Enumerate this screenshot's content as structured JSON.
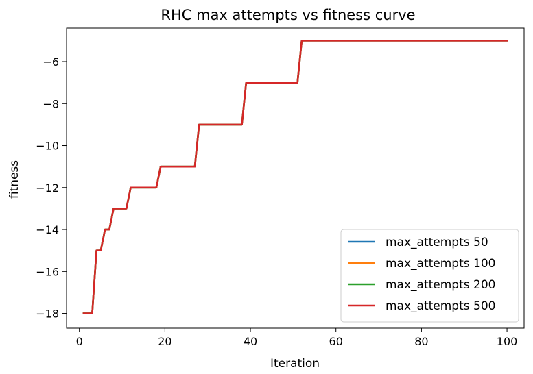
{
  "chart_data": {
    "type": "line",
    "title": "RHC max attempts vs fitness curve",
    "xlabel": "Iteration",
    "ylabel": "fitness",
    "xlim": [
      -3,
      104
    ],
    "ylim": [
      -18.7,
      -4.4
    ],
    "xticks": [
      0,
      20,
      40,
      60,
      80,
      100
    ],
    "yticks": [
      -18,
      -16,
      -14,
      -12,
      -10,
      -8,
      -6
    ],
    "grid": false,
    "legend_position": "lower-right",
    "series": [
      {
        "name": "max_attempts 50",
        "color": "#1f77b4",
        "x": [
          1,
          2,
          3,
          4,
          5,
          6,
          7,
          8,
          9,
          10,
          11,
          12,
          13,
          14,
          15,
          16,
          17,
          18,
          19,
          20,
          21,
          22,
          23,
          24,
          25,
          26,
          27,
          28,
          29,
          30,
          31,
          32,
          33,
          34,
          35,
          36,
          37,
          38,
          39,
          40,
          41,
          42,
          43,
          44,
          45,
          46,
          47,
          48,
          49,
          50,
          51,
          52,
          53,
          54,
          55,
          56,
          57,
          58,
          59,
          60,
          61,
          62,
          63,
          64,
          65,
          66,
          67,
          68,
          69,
          70,
          71,
          72,
          73,
          74,
          75,
          76,
          77,
          78,
          79,
          80,
          81,
          82,
          83,
          84,
          85,
          86,
          87,
          88,
          89,
          90,
          91,
          92,
          93,
          94,
          95,
          96,
          97,
          98,
          99,
          100
        ],
        "y": [
          -18,
          -18,
          -18,
          -15,
          -15,
          -14,
          -14,
          -13,
          -13,
          -13,
          -13,
          -12,
          -12,
          -12,
          -12,
          -12,
          -12,
          -12,
          -11,
          -11,
          -11,
          -11,
          -11,
          -11,
          -11,
          -11,
          -11,
          -9,
          -9,
          -9,
          -9,
          -9,
          -9,
          -9,
          -9,
          -9,
          -9,
          -9,
          -7,
          -7,
          -7,
          -7,
          -7,
          -7,
          -7,
          -7,
          -7,
          -7,
          -7,
          -7,
          -7,
          -5,
          -5,
          -5,
          -5,
          -5,
          -5,
          -5,
          -5,
          -5,
          -5,
          -5,
          -5,
          -5,
          -5,
          -5,
          -5,
          -5,
          -5,
          -5,
          -5,
          -5,
          -5,
          -5,
          -5,
          -5,
          -5,
          -5,
          -5,
          -5,
          -5,
          -5,
          -5,
          -5,
          -5,
          -5,
          -5,
          -5,
          -5,
          -5,
          -5,
          -5,
          -5,
          -5,
          -5,
          -5,
          -5,
          -5,
          -5,
          -5
        ]
      },
      {
        "name": "max_attempts 100",
        "color": "#ff7f0e",
        "x": [
          1,
          2,
          3,
          4,
          5,
          6,
          7,
          8,
          9,
          10,
          11,
          12,
          13,
          14,
          15,
          16,
          17,
          18,
          19,
          20,
          21,
          22,
          23,
          24,
          25,
          26,
          27,
          28,
          29,
          30,
          31,
          32,
          33,
          34,
          35,
          36,
          37,
          38,
          39,
          40,
          41,
          42,
          43,
          44,
          45,
          46,
          47,
          48,
          49,
          50,
          51,
          52,
          53,
          54,
          55,
          56,
          57,
          58,
          59,
          60,
          61,
          62,
          63,
          64,
          65,
          66,
          67,
          68,
          69,
          70,
          71,
          72,
          73,
          74,
          75,
          76,
          77,
          78,
          79,
          80,
          81,
          82,
          83,
          84,
          85,
          86,
          87,
          88,
          89,
          90,
          91,
          92,
          93,
          94,
          95,
          96,
          97,
          98,
          99,
          100
        ],
        "y": [
          -18,
          -18,
          -18,
          -15,
          -15,
          -14,
          -14,
          -13,
          -13,
          -13,
          -13,
          -12,
          -12,
          -12,
          -12,
          -12,
          -12,
          -12,
          -11,
          -11,
          -11,
          -11,
          -11,
          -11,
          -11,
          -11,
          -11,
          -9,
          -9,
          -9,
          -9,
          -9,
          -9,
          -9,
          -9,
          -9,
          -9,
          -9,
          -7,
          -7,
          -7,
          -7,
          -7,
          -7,
          -7,
          -7,
          -7,
          -7,
          -7,
          -7,
          -7,
          -5,
          -5,
          -5,
          -5,
          -5,
          -5,
          -5,
          -5,
          -5,
          -5,
          -5,
          -5,
          -5,
          -5,
          -5,
          -5,
          -5,
          -5,
          -5,
          -5,
          -5,
          -5,
          -5,
          -5,
          -5,
          -5,
          -5,
          -5,
          -5,
          -5,
          -5,
          -5,
          -5,
          -5,
          -5,
          -5,
          -5,
          -5,
          -5,
          -5,
          -5,
          -5,
          -5,
          -5,
          -5,
          -5,
          -5,
          -5,
          -5
        ]
      },
      {
        "name": "max_attempts 200",
        "color": "#2ca02c",
        "x": [
          1,
          2,
          3,
          4,
          5,
          6,
          7,
          8,
          9,
          10,
          11,
          12,
          13,
          14,
          15,
          16,
          17,
          18,
          19,
          20,
          21,
          22,
          23,
          24,
          25,
          26,
          27,
          28,
          29,
          30,
          31,
          32,
          33,
          34,
          35,
          36,
          37,
          38,
          39,
          40,
          41,
          42,
          43,
          44,
          45,
          46,
          47,
          48,
          49,
          50,
          51,
          52,
          53,
          54,
          55,
          56,
          57,
          58,
          59,
          60,
          61,
          62,
          63,
          64,
          65,
          66,
          67,
          68,
          69,
          70,
          71,
          72,
          73,
          74,
          75,
          76,
          77,
          78,
          79,
          80,
          81,
          82,
          83,
          84,
          85,
          86,
          87,
          88,
          89,
          90,
          91,
          92,
          93,
          94,
          95,
          96,
          97,
          98,
          99,
          100
        ],
        "y": [
          -18,
          -18,
          -18,
          -15,
          -15,
          -14,
          -14,
          -13,
          -13,
          -13,
          -13,
          -12,
          -12,
          -12,
          -12,
          -12,
          -12,
          -12,
          -11,
          -11,
          -11,
          -11,
          -11,
          -11,
          -11,
          -11,
          -11,
          -9,
          -9,
          -9,
          -9,
          -9,
          -9,
          -9,
          -9,
          -9,
          -9,
          -9,
          -7,
          -7,
          -7,
          -7,
          -7,
          -7,
          -7,
          -7,
          -7,
          -7,
          -7,
          -7,
          -7,
          -5,
          -5,
          -5,
          -5,
          -5,
          -5,
          -5,
          -5,
          -5,
          -5,
          -5,
          -5,
          -5,
          -5,
          -5,
          -5,
          -5,
          -5,
          -5,
          -5,
          -5,
          -5,
          -5,
          -5,
          -5,
          -5,
          -5,
          -5,
          -5,
          -5,
          -5,
          -5,
          -5,
          -5,
          -5,
          -5,
          -5,
          -5,
          -5,
          -5,
          -5,
          -5,
          -5,
          -5,
          -5,
          -5,
          -5,
          -5,
          -5
        ]
      },
      {
        "name": "max_attempts 500",
        "color": "#d62728",
        "x": [
          1,
          2,
          3,
          4,
          5,
          6,
          7,
          8,
          9,
          10,
          11,
          12,
          13,
          14,
          15,
          16,
          17,
          18,
          19,
          20,
          21,
          22,
          23,
          24,
          25,
          26,
          27,
          28,
          29,
          30,
          31,
          32,
          33,
          34,
          35,
          36,
          37,
          38,
          39,
          40,
          41,
          42,
          43,
          44,
          45,
          46,
          47,
          48,
          49,
          50,
          51,
          52,
          53,
          54,
          55,
          56,
          57,
          58,
          59,
          60,
          61,
          62,
          63,
          64,
          65,
          66,
          67,
          68,
          69,
          70,
          71,
          72,
          73,
          74,
          75,
          76,
          77,
          78,
          79,
          80,
          81,
          82,
          83,
          84,
          85,
          86,
          87,
          88,
          89,
          90,
          91,
          92,
          93,
          94,
          95,
          96,
          97,
          98,
          99,
          100
        ],
        "y": [
          -18,
          -18,
          -18,
          -15,
          -15,
          -14,
          -14,
          -13,
          -13,
          -13,
          -13,
          -12,
          -12,
          -12,
          -12,
          -12,
          -12,
          -12,
          -11,
          -11,
          -11,
          -11,
          -11,
          -11,
          -11,
          -11,
          -11,
          -9,
          -9,
          -9,
          -9,
          -9,
          -9,
          -9,
          -9,
          -9,
          -9,
          -9,
          -7,
          -7,
          -7,
          -7,
          -7,
          -7,
          -7,
          -7,
          -7,
          -7,
          -7,
          -7,
          -7,
          -5,
          -5,
          -5,
          -5,
          -5,
          -5,
          -5,
          -5,
          -5,
          -5,
          -5,
          -5,
          -5,
          -5,
          -5,
          -5,
          -5,
          -5,
          -5,
          -5,
          -5,
          -5,
          -5,
          -5,
          -5,
          -5,
          -5,
          -5,
          -5,
          -5,
          -5,
          -5,
          -5,
          -5,
          -5,
          -5,
          -5,
          -5,
          -5,
          -5,
          -5,
          -5,
          -5,
          -5,
          -5,
          -5,
          -5,
          -5,
          -5
        ]
      }
    ]
  }
}
